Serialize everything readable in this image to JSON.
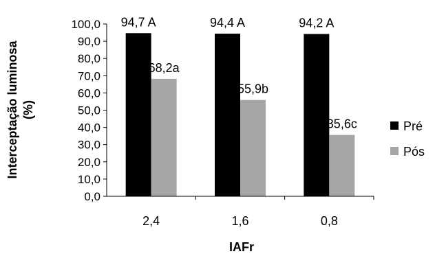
{
  "chart_data": {
    "type": "bar",
    "categories": [
      "2,4",
      "1,6",
      "0,8"
    ],
    "series": [
      {
        "name": "Pré",
        "color": "#000000",
        "values": [
          94.7,
          94.4,
          94.2
        ],
        "labels": [
          "94,7 A",
          "94,4 A",
          "94,2 A"
        ]
      },
      {
        "name": "Pós",
        "color": "#a6a6a6",
        "values": [
          68.2,
          55.9,
          35.6
        ],
        "labels": [
          "68,2a",
          "55,9b",
          "35,6c"
        ]
      }
    ],
    "ylim": [
      0,
      100
    ],
    "yticks": [
      "0,0",
      "10,0",
      "20,0",
      "30,0",
      "40,0",
      "50,0",
      "60,0",
      "70,0",
      "80,0",
      "90,0",
      "100,0"
    ],
    "xlabel": "IAFr",
    "ylabel_line1": "Interceptação luminosa",
    "ylabel_line2": "(%)",
    "grid": false,
    "legend_position": "right"
  }
}
